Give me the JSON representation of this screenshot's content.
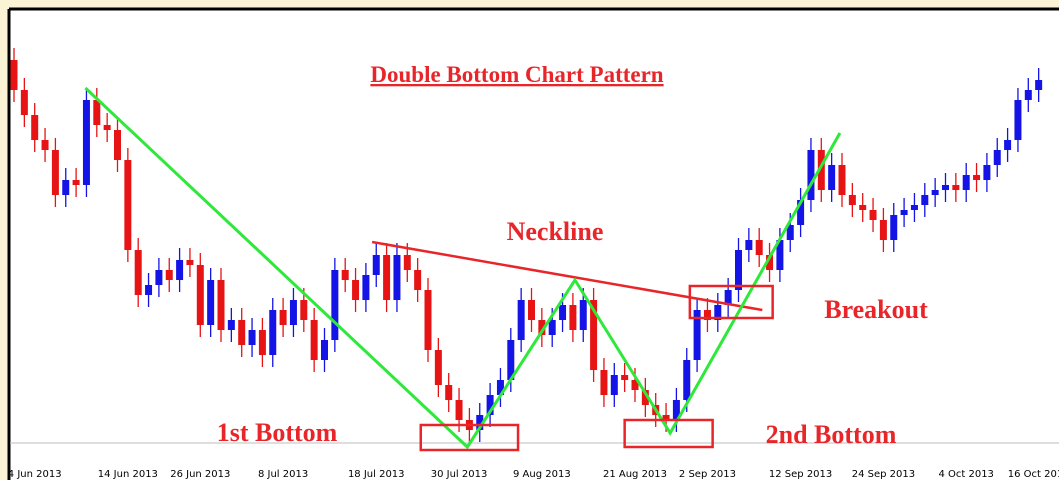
{
  "chart_data": {
    "type": "candlestick",
    "title": "Double Bottom Chart Pattern",
    "up_color": "#1414e6",
    "down_color": "#e61414",
    "categories": [
      null,
      null,
      "4 Jun 2013",
      null,
      null,
      null,
      null,
      null,
      null,
      null,
      null,
      "14 Jun 2013",
      null,
      null,
      null,
      null,
      null,
      null,
      "26 Jun 2013",
      null,
      null,
      null,
      null,
      null,
      null,
      null,
      "8 Jul 2013",
      null,
      null,
      null,
      null,
      null,
      null,
      null,
      null,
      "18 Jul 2013",
      null,
      null,
      null,
      null,
      null,
      null,
      null,
      "30 Jul 2013",
      null,
      null,
      null,
      null,
      null,
      null,
      null,
      "9 Aug 2013",
      null,
      null,
      null,
      null,
      null,
      null,
      null,
      null,
      "21 Aug 2013",
      null,
      null,
      null,
      null,
      null,
      null,
      "2 Sep 2013",
      null,
      null,
      null,
      null,
      null,
      null,
      null,
      null,
      "12 Sep 2013",
      null,
      null,
      null,
      null,
      null,
      null,
      null,
      "24 Sep 2013",
      null,
      null,
      null,
      null,
      null,
      null,
      null,
      "4 Oct 2013",
      null,
      null,
      null,
      null,
      null,
      null,
      "16 Oct 2013"
    ],
    "open": [
      410,
      380,
      355,
      330,
      320,
      275,
      290,
      285,
      370,
      345,
      340,
      310,
      220,
      175,
      185,
      200,
      190,
      210,
      205,
      145,
      190,
      140,
      150,
      125,
      140,
      115,
      160,
      145,
      170,
      150,
      110,
      130,
      200,
      190,
      170,
      195,
      215,
      170,
      215,
      200,
      180,
      120,
      85,
      70,
      50,
      40,
      55,
      75,
      90,
      130,
      170,
      150,
      135,
      150,
      165,
      140,
      170,
      100,
      75,
      95,
      90,
      80,
      65,
      55,
      50,
      70,
      110,
      160,
      150,
      165,
      180,
      220,
      230,
      215,
      200,
      230,
      245,
      270,
      320,
      280,
      305,
      275,
      265,
      260,
      250,
      230,
      255,
      260,
      265,
      275,
      280,
      285,
      280,
      295,
      290,
      305,
      320,
      330,
      370,
      380
    ],
    "high": [
      422,
      392,
      367,
      342,
      332,
      302,
      302,
      382,
      382,
      357,
      352,
      322,
      232,
      197,
      212,
      212,
      222,
      222,
      217,
      202,
      202,
      162,
      162,
      152,
      152,
      172,
      172,
      182,
      182,
      162,
      142,
      212,
      212,
      202,
      207,
      227,
      227,
      227,
      227,
      212,
      192,
      132,
      97,
      82,
      62,
      67,
      87,
      102,
      142,
      182,
      182,
      162,
      162,
      177,
      177,
      182,
      182,
      112,
      107,
      107,
      102,
      92,
      77,
      67,
      82,
      122,
      172,
      172,
      177,
      192,
      232,
      242,
      242,
      227,
      242,
      257,
      282,
      332,
      332,
      317,
      317,
      287,
      277,
      272,
      262,
      267,
      272,
      277,
      287,
      292,
      297,
      297,
      307,
      307,
      317,
      332,
      342,
      382,
      392,
      402
    ],
    "low": [
      368,
      343,
      318,
      308,
      263,
      263,
      273,
      273,
      333,
      328,
      298,
      208,
      163,
      163,
      173,
      178,
      178,
      193,
      133,
      133,
      128,
      128,
      113,
      113,
      103,
      103,
      133,
      133,
      138,
      98,
      98,
      118,
      178,
      158,
      158,
      183,
      158,
      158,
      188,
      168,
      108,
      73,
      58,
      38,
      28,
      28,
      43,
      63,
      78,
      118,
      138,
      123,
      123,
      138,
      128,
      128,
      88,
      63,
      63,
      78,
      68,
      53,
      43,
      38,
      38,
      58,
      98,
      138,
      138,
      153,
      168,
      208,
      203,
      188,
      188,
      218,
      233,
      258,
      268,
      268,
      263,
      253,
      248,
      238,
      218,
      218,
      243,
      248,
      253,
      263,
      268,
      268,
      268,
      278,
      278,
      293,
      308,
      318,
      358,
      368
    ],
    "close": [
      380,
      355,
      330,
      320,
      275,
      290,
      285,
      370,
      345,
      340,
      310,
      220,
      175,
      185,
      200,
      190,
      210,
      205,
      145,
      190,
      140,
      150,
      125,
      140,
      115,
      160,
      145,
      170,
      150,
      110,
      130,
      200,
      190,
      170,
      195,
      215,
      170,
      215,
      200,
      180,
      120,
      85,
      70,
      50,
      40,
      55,
      75,
      90,
      130,
      170,
      150,
      135,
      150,
      165,
      140,
      170,
      100,
      75,
      95,
      90,
      80,
      65,
      55,
      50,
      70,
      110,
      160,
      150,
      165,
      180,
      220,
      230,
      215,
      200,
      230,
      245,
      270,
      320,
      280,
      305,
      275,
      265,
      260,
      250,
      230,
      255,
      260,
      265,
      275,
      280,
      285,
      280,
      295,
      290,
      305,
      320,
      330,
      370,
      380,
      390
    ],
    "ylim": [
      10,
      460
    ],
    "reference_line": 27,
    "zigzag": {
      "color": "#2ee83a",
      "x": [
        6.9,
        43.8,
        54.2,
        63.4,
        79.8
      ],
      "y": [
        382,
        23,
        190,
        37,
        337
      ]
    },
    "neckline": {
      "label": "Neckline",
      "color": "#e8262a",
      "x": [
        34.6,
        72.3
      ],
      "y": [
        228,
        160
      ]
    },
    "boxes": [
      {
        "label": "1st Bottom",
        "x": [
          39.3,
          48.7
        ],
        "y": [
          20,
          45
        ]
      },
      {
        "label": "2nd Bottom",
        "x": [
          59.0,
          67.5
        ],
        "y": [
          23,
          50
        ]
      },
      {
        "label": "Breakout",
        "x": [
          65.3,
          73.3
        ],
        "y": [
          152,
          184
        ]
      }
    ]
  }
}
